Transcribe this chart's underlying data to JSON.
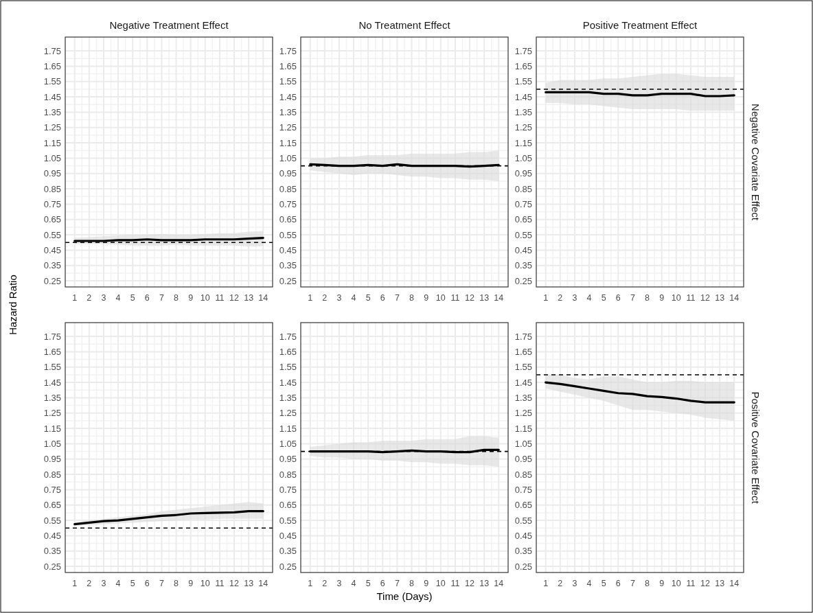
{
  "chart_data": [
    {
      "type": "line",
      "title": "Negative Treatment Effect",
      "ylabel": "Hazard Ratio",
      "x": [
        1,
        2,
        3,
        4,
        5,
        6,
        7,
        8,
        9,
        10,
        11,
        12,
        13,
        14
      ],
      "xlim": [
        0.35,
        14.65
      ],
      "xticks": [
        1,
        2,
        3,
        4,
        5,
        6,
        7,
        8,
        9,
        10,
        11,
        12,
        13,
        14
      ],
      "ylim": [
        0.21,
        1.84
      ],
      "yticks": [
        0.25,
        0.35,
        0.45,
        0.55,
        0.65,
        0.75,
        0.85,
        0.95,
        1.05,
        1.15,
        1.25,
        1.35,
        1.45,
        1.55,
        1.65,
        1.75
      ],
      "grid": true,
      "line_style": "solid",
      "series": [
        {
          "color": "#000000",
          "values": [
            0.51,
            0.51,
            0.51,
            0.515,
            0.515,
            0.52,
            0.515,
            0.515,
            0.515,
            0.52,
            0.52,
            0.52,
            0.525,
            0.53
          ],
          "lower": [
            0.49,
            0.49,
            0.49,
            0.485,
            0.48,
            0.48,
            0.48,
            0.485,
            0.48,
            0.48,
            0.48,
            0.48,
            0.475,
            0.475
          ],
          "upper": [
            0.53,
            0.535,
            0.54,
            0.545,
            0.55,
            0.55,
            0.555,
            0.55,
            0.55,
            0.555,
            0.56,
            0.56,
            0.57,
            0.575
          ]
        }
      ],
      "ref_lines": [
        {
          "axis": "y",
          "value": 0.5,
          "line_style": "dashed",
          "color": "#000000"
        }
      ]
    },
    {
      "type": "line",
      "title": "No Treatment Effect",
      "x": [
        1,
        2,
        3,
        4,
        5,
        6,
        7,
        8,
        9,
        10,
        11,
        12,
        13,
        14
      ],
      "xlim": [
        0.35,
        14.65
      ],
      "xticks": [
        1,
        2,
        3,
        4,
        5,
        6,
        7,
        8,
        9,
        10,
        11,
        12,
        13,
        14
      ],
      "ylim": [
        0.21,
        1.84
      ],
      "yticks": [
        0.25,
        0.35,
        0.45,
        0.55,
        0.65,
        0.75,
        0.85,
        0.95,
        1.05,
        1.15,
        1.25,
        1.35,
        1.45,
        1.55,
        1.65,
        1.75
      ],
      "grid": true,
      "line_style": "solid",
      "series": [
        {
          "color": "#000000",
          "values": [
            1.01,
            1.005,
            1.0,
            1.0,
            1.005,
            1.0,
            1.01,
            1.0,
            1.0,
            1.0,
            1.0,
            0.995,
            1.0,
            1.005
          ],
          "lower": [
            0.97,
            0.96,
            0.95,
            0.94,
            0.95,
            0.95,
            0.94,
            0.93,
            0.93,
            0.92,
            0.92,
            0.91,
            0.91,
            0.9
          ],
          "upper": [
            1.05,
            1.05,
            1.06,
            1.06,
            1.07,
            1.07,
            1.07,
            1.08,
            1.08,
            1.08,
            1.08,
            1.09,
            1.09,
            1.1
          ]
        }
      ],
      "ref_lines": [
        {
          "axis": "y",
          "value": 1,
          "line_style": "dashed",
          "color": "#000000"
        }
      ]
    },
    {
      "type": "line",
      "title": "Positive Treatment Effect",
      "y2label": "Negative Covariate Effect",
      "x": [
        1,
        2,
        3,
        4,
        5,
        6,
        7,
        8,
        9,
        10,
        11,
        12,
        13,
        14
      ],
      "xlim": [
        0.35,
        14.65
      ],
      "xticks": [
        1,
        2,
        3,
        4,
        5,
        6,
        7,
        8,
        9,
        10,
        11,
        12,
        13,
        14
      ],
      "ylim": [
        0.21,
        1.84
      ],
      "yticks": [
        0.25,
        0.35,
        0.45,
        0.55,
        0.65,
        0.75,
        0.85,
        0.95,
        1.05,
        1.15,
        1.25,
        1.35,
        1.45,
        1.55,
        1.65,
        1.75
      ],
      "grid": true,
      "line_style": "solid",
      "series": [
        {
          "color": "#000000",
          "values": [
            1.48,
            1.48,
            1.48,
            1.48,
            1.47,
            1.47,
            1.46,
            1.46,
            1.47,
            1.47,
            1.47,
            1.455,
            1.455,
            1.46
          ],
          "lower": [
            1.41,
            1.41,
            1.4,
            1.4,
            1.39,
            1.38,
            1.37,
            1.37,
            1.37,
            1.37,
            1.36,
            1.36,
            1.36,
            1.36
          ],
          "upper": [
            1.54,
            1.56,
            1.56,
            1.56,
            1.57,
            1.57,
            1.58,
            1.59,
            1.6,
            1.6,
            1.59,
            1.58,
            1.58,
            1.58
          ]
        }
      ],
      "ref_lines": [
        {
          "axis": "y",
          "value": 1.5,
          "line_style": "dashed",
          "color": "#000000"
        }
      ]
    },
    {
      "type": "line",
      "x": [
        1,
        2,
        3,
        4,
        5,
        6,
        7,
        8,
        9,
        10,
        11,
        12,
        13,
        14
      ],
      "xlim": [
        0.35,
        14.65
      ],
      "xticks": [
        1,
        2,
        3,
        4,
        5,
        6,
        7,
        8,
        9,
        10,
        11,
        12,
        13,
        14
      ],
      "ylim": [
        0.21,
        1.84
      ],
      "yticks": [
        0.25,
        0.35,
        0.45,
        0.55,
        0.65,
        0.75,
        0.85,
        0.95,
        1.05,
        1.15,
        1.25,
        1.35,
        1.45,
        1.55,
        1.65,
        1.75
      ],
      "grid": true,
      "line_style": "solid",
      "series": [
        {
          "color": "#000000",
          "values": [
            0.525,
            0.535,
            0.545,
            0.55,
            0.56,
            0.57,
            0.58,
            0.585,
            0.595,
            0.598,
            0.6,
            0.602,
            0.61,
            0.61
          ],
          "lower": [
            0.515,
            0.52,
            0.525,
            0.53,
            0.535,
            0.54,
            0.545,
            0.55,
            0.555,
            0.555,
            0.56,
            0.56,
            0.56,
            0.56
          ],
          "upper": [
            0.535,
            0.55,
            0.56,
            0.57,
            0.58,
            0.59,
            0.61,
            0.62,
            0.63,
            0.64,
            0.65,
            0.66,
            0.67,
            0.66
          ]
        }
      ],
      "ref_lines": [
        {
          "axis": "y",
          "value": 0.5,
          "line_style": "dashed",
          "color": "#000000"
        }
      ]
    },
    {
      "type": "line",
      "xlabel": "Time (Days)",
      "x": [
        1,
        2,
        3,
        4,
        5,
        6,
        7,
        8,
        9,
        10,
        11,
        12,
        13,
        14
      ],
      "xlim": [
        0.35,
        14.65
      ],
      "xticks": [
        1,
        2,
        3,
        4,
        5,
        6,
        7,
        8,
        9,
        10,
        11,
        12,
        13,
        14
      ],
      "ylim": [
        0.21,
        1.84
      ],
      "yticks": [
        0.25,
        0.35,
        0.45,
        0.55,
        0.65,
        0.75,
        0.85,
        0.95,
        1.05,
        1.15,
        1.25,
        1.35,
        1.45,
        1.55,
        1.65,
        1.75
      ],
      "grid": true,
      "line_style": "solid",
      "series": [
        {
          "color": "#000000",
          "values": [
            1.0,
            1.0,
            1.0,
            1.0,
            1.0,
            0.995,
            1.0,
            1.005,
            1.0,
            1.0,
            0.995,
            0.995,
            1.01,
            1.01
          ],
          "lower": [
            0.97,
            0.96,
            0.96,
            0.95,
            0.95,
            0.94,
            0.94,
            0.93,
            0.93,
            0.92,
            0.92,
            0.91,
            0.91,
            0.9
          ],
          "upper": [
            1.03,
            1.04,
            1.05,
            1.06,
            1.06,
            1.07,
            1.07,
            1.07,
            1.08,
            1.08,
            1.08,
            1.1,
            1.1,
            1.09
          ]
        }
      ],
      "ref_lines": [
        {
          "axis": "y",
          "value": 1,
          "line_style": "dashed",
          "color": "#000000"
        }
      ]
    },
    {
      "type": "line",
      "y2label": "Positive Covariate Effect",
      "x": [
        1,
        2,
        3,
        4,
        5,
        6,
        7,
        8,
        9,
        10,
        11,
        12,
        13,
        14
      ],
      "xlim": [
        0.35,
        14.65
      ],
      "xticks": [
        1,
        2,
        3,
        4,
        5,
        6,
        7,
        8,
        9,
        10,
        11,
        12,
        13,
        14
      ],
      "ylim": [
        0.21,
        1.84
      ],
      "yticks": [
        0.25,
        0.35,
        0.45,
        0.55,
        0.65,
        0.75,
        0.85,
        0.95,
        1.05,
        1.15,
        1.25,
        1.35,
        1.45,
        1.55,
        1.65,
        1.75
      ],
      "grid": true,
      "line_style": "solid",
      "series": [
        {
          "color": "#000000",
          "values": [
            1.45,
            1.44,
            1.425,
            1.41,
            1.395,
            1.38,
            1.375,
            1.36,
            1.355,
            1.345,
            1.33,
            1.32,
            1.32,
            1.32
          ],
          "lower": [
            1.41,
            1.39,
            1.37,
            1.35,
            1.33,
            1.3,
            1.27,
            1.27,
            1.26,
            1.25,
            1.24,
            1.22,
            1.21,
            1.2
          ],
          "upper": [
            1.5,
            1.5,
            1.48,
            1.47,
            1.49,
            1.49,
            1.47,
            1.45,
            1.45,
            1.46,
            1.46,
            1.45,
            1.45,
            1.45
          ]
        }
      ],
      "ref_lines": [
        {
          "axis": "y",
          "value": 1.5,
          "line_style": "dashed",
          "color": "#000000"
        }
      ]
    }
  ]
}
